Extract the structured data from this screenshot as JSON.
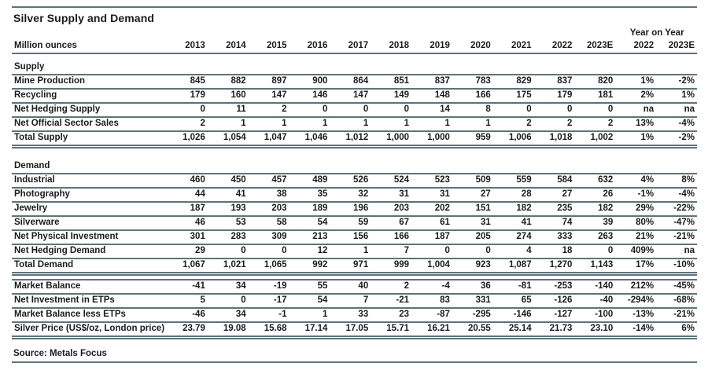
{
  "title": "Silver Supply and Demand",
  "source": "Source: Metals Focus",
  "colors": {
    "rule_line": "#5d737b",
    "text": "#1b1b1b",
    "background": "#ffffff"
  },
  "table": {
    "unit_label": "Million ounces",
    "yoy_label": "Year on Year",
    "year_columns": [
      "2013",
      "2014",
      "2015",
      "2016",
      "2017",
      "2018",
      "2019",
      "2020",
      "2021",
      "2022",
      "2023E"
    ],
    "yoy_columns": [
      "2022",
      "2023E"
    ],
    "sections": [
      {
        "header": "Supply",
        "rows": [
          {
            "label": "Mine Production",
            "values": [
              "845",
              "882",
              "897",
              "900",
              "864",
              "851",
              "837",
              "783",
              "829",
              "837",
              "820",
              "1%",
              "-2%"
            ]
          },
          {
            "label": "Recycling",
            "values": [
              "179",
              "160",
              "147",
              "146",
              "147",
              "149",
              "148",
              "166",
              "175",
              "179",
              "181",
              "2%",
              "1%"
            ]
          },
          {
            "label": "Net Hedging Supply",
            "values": [
              "0",
              "11",
              "2",
              "0",
              "0",
              "0",
              "14",
              "8",
              "0",
              "0",
              "0",
              "na",
              "na"
            ]
          },
          {
            "label": "Net Official Sector Sales",
            "values": [
              "2",
              "1",
              "1",
              "1",
              "1",
              "1",
              "1",
              "1",
              "2",
              "2",
              "2",
              "13%",
              "-4%"
            ]
          },
          {
            "label": "Total Supply",
            "values": [
              "1,026",
              "1,054",
              "1,047",
              "1,046",
              "1,012",
              "1,000",
              "1,000",
              "959",
              "1,006",
              "1,018",
              "1,002",
              "1%",
              "-2%"
            ],
            "total": true
          }
        ]
      },
      {
        "header": "Demand",
        "rows": [
          {
            "label": "Industrial",
            "values": [
              "460",
              "450",
              "457",
              "489",
              "526",
              "524",
              "523",
              "509",
              "559",
              "584",
              "632",
              "4%",
              "8%"
            ]
          },
          {
            "label": "Photography",
            "values": [
              "44",
              "41",
              "38",
              "35",
              "32",
              "31",
              "31",
              "27",
              "28",
              "27",
              "26",
              "-1%",
              "-4%"
            ]
          },
          {
            "label": "Jewelry",
            "values": [
              "187",
              "193",
              "203",
              "189",
              "196",
              "203",
              "202",
              "151",
              "182",
              "235",
              "182",
              "29%",
              "-22%"
            ]
          },
          {
            "label": "Silverware",
            "values": [
              "46",
              "53",
              "58",
              "54",
              "59",
              "67",
              "61",
              "31",
              "41",
              "74",
              "39",
              "80%",
              "-47%"
            ]
          },
          {
            "label": "Net Physical Investment",
            "values": [
              "301",
              "283",
              "309",
              "213",
              "156",
              "166",
              "187",
              "205",
              "274",
              "333",
              "263",
              "21%",
              "-21%"
            ]
          },
          {
            "label": "Net Hedging Demand",
            "values": [
              "29",
              "0",
              "0",
              "12",
              "1",
              "7",
              "0",
              "0",
              "4",
              "18",
              "0",
              "409%",
              "na"
            ]
          },
          {
            "label": "Total Demand",
            "values": [
              "1,067",
              "1,021",
              "1,065",
              "992",
              "971",
              "999",
              "1,004",
              "923",
              "1,087",
              "1,270",
              "1,143",
              "17%",
              "-10%"
            ],
            "total": true
          }
        ]
      },
      {
        "header": null,
        "top_border": true,
        "rows": [
          {
            "label": "Market Balance",
            "values": [
              "-41",
              "34",
              "-19",
              "55",
              "40",
              "2",
              "-4",
              "36",
              "-81",
              "-253",
              "-140",
              "212%",
              "-45%"
            ]
          },
          {
            "label": "Net Investment in ETPs",
            "values": [
              "5",
              "0",
              "-17",
              "54",
              "7",
              "-21",
              "83",
              "331",
              "65",
              "-126",
              "-40",
              "-294%",
              "-68%"
            ]
          },
          {
            "label": "Market Balance less ETPs",
            "values": [
              "-46",
              "34",
              "-1",
              "1",
              "33",
              "23",
              "-87",
              "-295",
              "-146",
              "-127",
              "-100",
              "-13%",
              "-21%"
            ]
          },
          {
            "label": "Silver Price (US$/oz, London price)",
            "values": [
              "23.79",
              "19.08",
              "15.68",
              "17.14",
              "17.05",
              "15.71",
              "16.21",
              "20.55",
              "25.14",
              "21.73",
              "23.10",
              "-14%",
              "6%"
            ],
            "total": true
          }
        ]
      }
    ]
  }
}
